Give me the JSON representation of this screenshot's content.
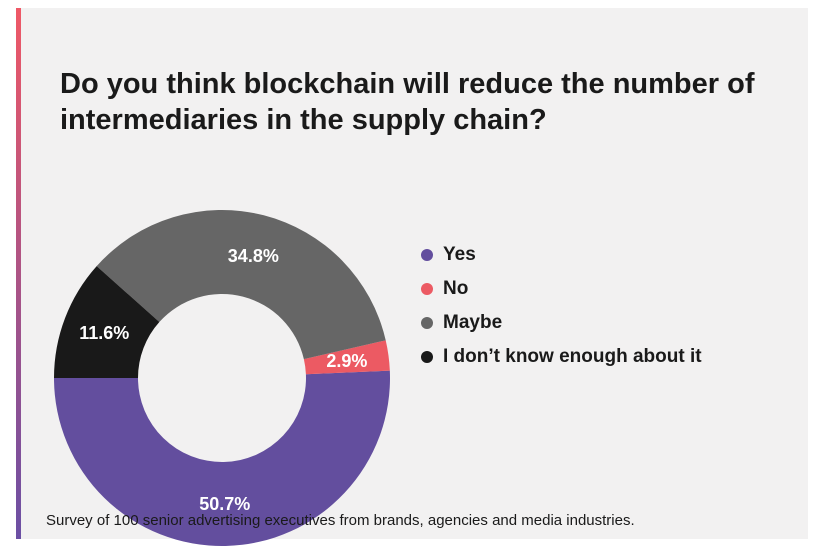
{
  "chart_data": {
    "type": "pie",
    "title": "Do you think blockchain will reduce the number of intermediaries in the supply chain?",
    "categories": [
      "Yes",
      "No",
      "Maybe",
      "I don’t know enough about it"
    ],
    "values": [
      50.7,
      2.9,
      34.8,
      11.6
    ],
    "value_labels": [
      "50.7%",
      "2.9%",
      "34.8%",
      "11.6%"
    ],
    "colors": [
      "#634e9e",
      "#ec5a63",
      "#666666",
      "#191919"
    ],
    "label_colors": [
      "#ffffff",
      "#ffffff",
      "#ffffff",
      "#ffffff"
    ],
    "donut": true,
    "legend_position": "right"
  },
  "footnote": "Survey of 100 senior advertising executives from brands, agencies and media industries."
}
